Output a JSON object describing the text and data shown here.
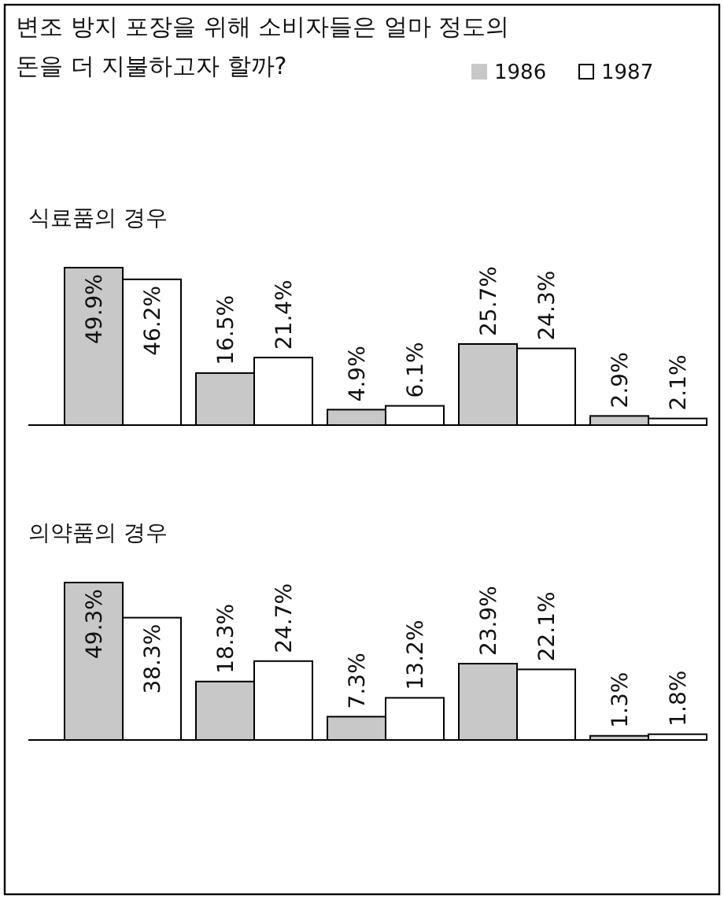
{
  "chart_data": [
    {
      "type": "bar",
      "title": "변조 방지 포장을 위해 소비자들은 얼마 정도의\n돈을 더 지불하고자 할까?",
      "subtitle": "식료품의 경우",
      "categories": [
        null,
        null,
        null,
        null,
        null
      ],
      "legend": "top right",
      "series": [
        {
          "name": "1986",
          "color": "#c8c8c8",
          "values": [
            49.9,
            16.5,
            4.9,
            25.7,
            2.9
          ],
          "value_labels": [
            "49.9%",
            "16.5%",
            "4.9%",
            "25.7%",
            "2.9%"
          ]
        },
        {
          "name": "1987",
          "color": "#ffffff",
          "values": [
            46.2,
            21.4,
            6.1,
            24.3,
            2.1
          ],
          "value_labels": [
            "46.2%",
            "21.4%",
            "6.1%",
            "24.3%",
            "2.1%"
          ]
        }
      ]
    },
    {
      "type": "bar",
      "subtitle": "의약품의 경우",
      "categories": [
        null,
        null,
        null,
        null,
        null
      ],
      "series": [
        {
          "color": "#c8c8c8",
          "values": [
            49.3,
            18.3,
            7.3,
            23.9,
            1.3
          ],
          "value_labels": [
            "49.3%",
            "18.3%",
            "7.3%",
            "23.9%",
            "1.3%"
          ]
        },
        {
          "color": "#ffffff",
          "values": [
            38.3,
            24.7,
            13.2,
            22.1,
            1.8
          ],
          "value_labels": [
            "38.3%",
            "24.7%",
            "13.2%",
            "22.1%",
            "1.8%"
          ]
        }
      ]
    }
  ]
}
